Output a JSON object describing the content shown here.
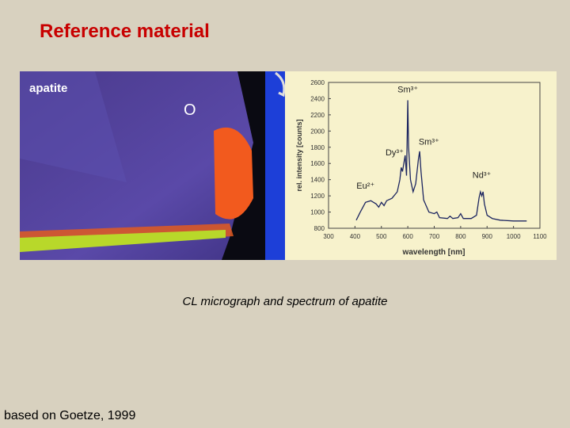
{
  "title": "Reference material",
  "caption": "CL micrograph and spectrum of apatite",
  "footer": "based on Goetze, 1999",
  "micrograph": {
    "label": "apatite",
    "marker": "O"
  },
  "chart_data": {
    "type": "line",
    "x_label": "wavelength [nm]",
    "y_label": "rel. intensity [counts]",
    "xlim": [
      300,
      1100
    ],
    "ylim": [
      800,
      2600
    ],
    "xticks": [
      300,
      400,
      500,
      600,
      700,
      800,
      900,
      1000,
      1100
    ],
    "yticks": [
      800,
      1000,
      1200,
      1400,
      1600,
      1800,
      2000,
      2200,
      2400,
      2600
    ],
    "x": [
      405,
      420,
      440,
      460,
      480,
      490,
      500,
      510,
      520,
      540,
      560,
      570,
      575,
      580,
      585,
      590,
      595,
      598,
      600,
      603,
      610,
      620,
      630,
      640,
      645,
      650,
      660,
      680,
      700,
      710,
      720,
      750,
      760,
      770,
      790,
      800,
      810,
      840,
      860,
      870,
      875,
      880,
      885,
      890,
      900,
      920,
      950,
      1000,
      1050
    ],
    "series": [
      {
        "color": "#1c2560",
        "values": [
          900,
          1000,
          1120,
          1140,
          1100,
          1060,
          1120,
          1080,
          1140,
          1170,
          1250,
          1400,
          1550,
          1500,
          1600,
          1700,
          1450,
          2000,
          2380,
          1800,
          1400,
          1250,
          1350,
          1650,
          1750,
          1500,
          1150,
          1000,
          980,
          1000,
          930,
          920,
          950,
          920,
          930,
          980,
          920,
          920,
          960,
          1180,
          1250,
          1200,
          1250,
          1100,
          960,
          920,
          900,
          890,
          890
        ]
      }
    ],
    "annotations": [
      {
        "text": "Sm³⁺",
        "x": 600,
        "y": 2480
      },
      {
        "text": "Dy³⁺",
        "x": 550,
        "y": 1700
      },
      {
        "text": "Sm³⁺",
        "x": 680,
        "y": 1830
      },
      {
        "text": "Eu²⁺",
        "x": 440,
        "y": 1290
      },
      {
        "text": "Nd³⁺",
        "x": 880,
        "y": 1420
      }
    ]
  }
}
